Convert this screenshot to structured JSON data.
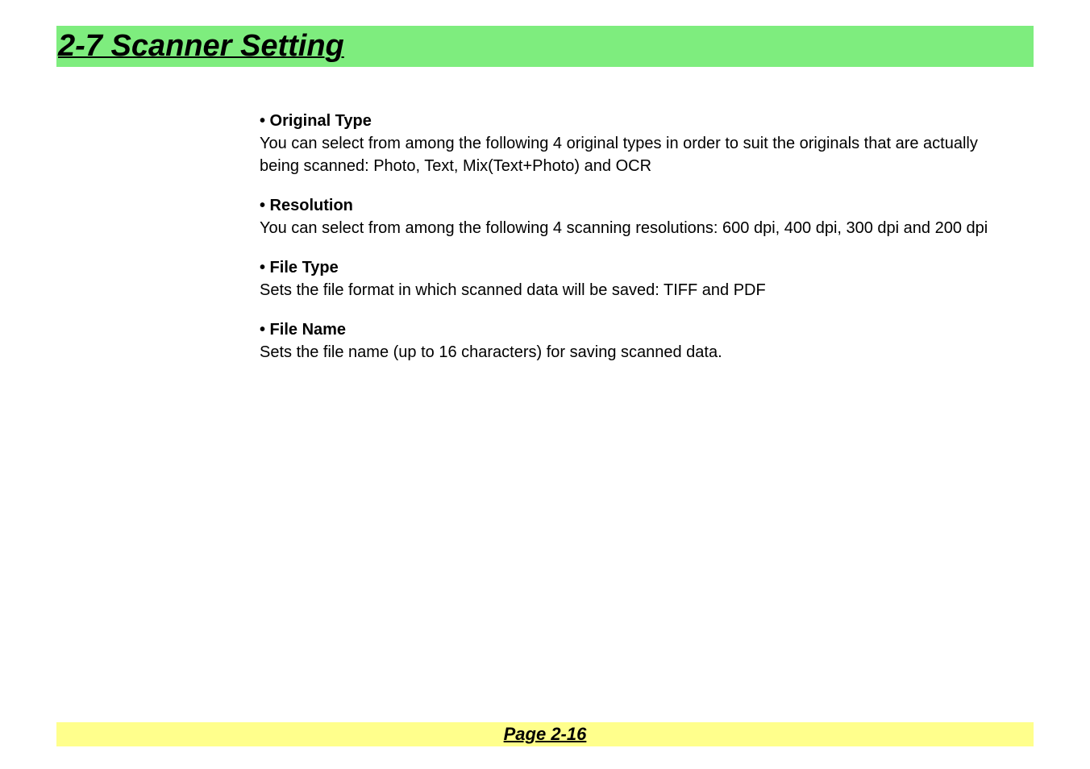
{
  "heading": "2-7  Scanner Setting",
  "sections": [
    {
      "title": "• Original Type",
      "body": "You can select from among the following 4 original types in order to suit the originals that are actually being scanned: Photo, Text, Mix(Text+Photo) and OCR"
    },
    {
      "title": "• Resolution",
      "body": "You can select from among the following 4 scanning resolutions: 600 dpi, 400 dpi, 300 dpi and 200 dpi"
    },
    {
      "title": "• File Type",
      "body": "Sets the file format in which scanned data will be saved: TIFF and PDF"
    },
    {
      "title": "• File Name",
      "body": "Sets the file name (up to 16 characters) for saving scanned data."
    }
  ],
  "footer": "Page 2-16",
  "colors": {
    "heading_bg": "#7eed7e",
    "footer_bg": "#ffff8c",
    "text": "#000000",
    "page_bg": "#ffffff"
  },
  "typography": {
    "heading_fontsize": 38,
    "body_fontsize": 20,
    "footer_fontsize": 22
  }
}
